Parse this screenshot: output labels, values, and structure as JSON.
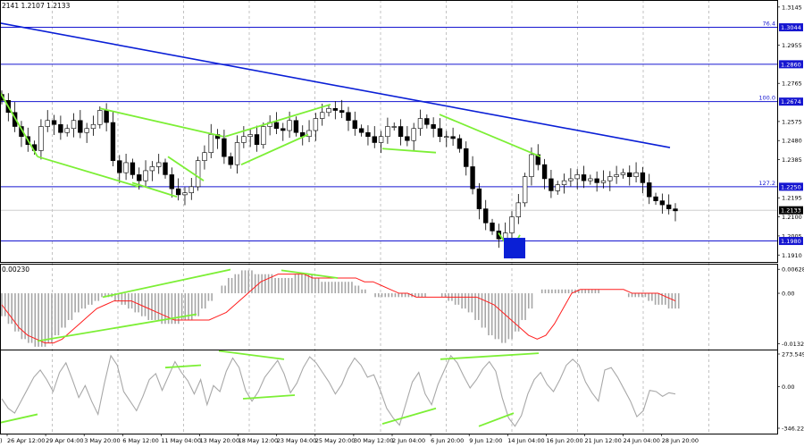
{
  "chart_data": [
    {
      "panel": "price",
      "type": "candlestick",
      "header": "2141 1.2107 1.2133",
      "yticks": [
        1.3145,
        1.2955,
        1.2765,
        1.2575,
        1.248,
        1.2385,
        1.2195,
        1.21,
        1.2005,
        1.191
      ],
      "ylim": [
        1.188,
        1.318
      ],
      "levels": [
        {
          "value": 1.3044,
          "label": "1.3044",
          "fib": "76.4"
        },
        {
          "value": 1.286,
          "label": "1.2860",
          "fib": ""
        },
        {
          "value": 1.2674,
          "label": "1.2674",
          "fib": "100.0"
        },
        {
          "value": 1.225,
          "label": "1.2250",
          "fib": "127.2"
        },
        {
          "value": 1.198,
          "label": "1.1980",
          "fib": ""
        }
      ],
      "current_price": {
        "value": 1.2133,
        "label": "1.2133"
      },
      "trendline": {
        "from": [
          0,
          1.3065
        ],
        "to": [
          750,
          1.2445
        ]
      },
      "close_series": [
        1.268,
        1.262,
        1.255,
        1.25,
        1.246,
        1.243,
        1.255,
        1.258,
        1.256,
        1.252,
        1.254,
        1.258,
        1.252,
        1.254,
        1.256,
        1.263,
        1.257,
        1.238,
        1.232,
        1.237,
        1.231,
        1.228,
        1.233,
        1.235,
        1.237,
        1.231,
        1.224,
        1.221,
        1.222,
        1.225,
        1.238,
        1.242,
        1.251,
        1.249,
        1.24,
        1.236,
        1.247,
        1.25,
        1.251,
        1.246,
        1.255,
        1.257,
        1.254,
        1.253,
        1.258,
        1.252,
        1.25,
        1.253,
        1.259,
        1.262,
        1.264,
        1.263,
        1.262,
        1.258,
        1.254,
        1.252,
        1.25,
        1.247,
        1.25,
        1.255,
        1.255,
        1.25,
        1.248,
        1.254,
        1.259,
        1.256,
        1.254,
        1.25,
        1.25,
        1.249,
        1.244,
        1.235,
        1.224,
        1.214,
        1.207,
        1.203,
        1.199,
        1.202,
        1.21,
        1.217,
        1.23,
        1.241,
        1.236,
        1.229,
        1.223,
        1.226,
        1.228,
        1.229,
        1.231,
        1.228,
        1.229,
        1.227,
        1.228,
        1.23,
        1.231,
        1.232,
        1.23,
        1.232,
        1.227,
        1.22,
        1.218,
        1.216,
        1.214,
        1.213
      ],
      "wedges": [
        {
          "from": [
            0,
            1.272
          ],
          "to": [
            42,
            1.24
          ]
        },
        {
          "from": [
            42,
            1.24
          ],
          "to": [
            155,
            1.225
          ]
        },
        {
          "from": [
            112,
            1.264
          ],
          "to": [
            250,
            1.25
          ]
        },
        {
          "from": [
            188,
            1.24
          ],
          "to": [
            228,
            1.228
          ]
        },
        {
          "from": [
            148,
            1.227
          ],
          "to": [
            198,
            1.22
          ]
        },
        {
          "from": [
            252,
            1.25
          ],
          "to": [
            370,
            1.266
          ]
        },
        {
          "from": [
            270,
            1.236
          ],
          "to": [
            345,
            1.251
          ]
        },
        {
          "from": [
            428,
            1.244
          ],
          "to": [
            488,
            1.242
          ]
        },
        {
          "from": [
            492,
            1.261
          ],
          "to": [
            605,
            1.24
          ]
        },
        {
          "from": [
            558,
            1.202
          ],
          "to": [
            572,
            1.193
          ]
        },
        {
          "from": [
            572,
            1.193
          ],
          "to": [
            582,
            1.201
          ]
        }
      ],
      "marker": {
        "x": 576,
        "price": 1.196
      }
    },
    {
      "panel": "macd",
      "type": "histogram",
      "header": "0.00230",
      "yticks": [
        "0.00628",
        "0.00",
        "-0.01323"
      ],
      "ylim": [
        -0.0145,
        0.0075
      ],
      "histogram": [
        -0.006,
        -0.008,
        -0.01,
        -0.012,
        -0.013,
        -0.014,
        -0.014,
        -0.013,
        -0.011,
        -0.009,
        -0.007,
        -0.005,
        -0.004,
        -0.003,
        -0.002,
        -0.001,
        -0.001,
        -0.002,
        -0.003,
        -0.004,
        -0.005,
        -0.006,
        -0.007,
        -0.007,
        -0.008,
        -0.008,
        -0.008,
        -0.007,
        -0.007,
        -0.006,
        -0.004,
        -0.002,
        0.0,
        0.002,
        0.004,
        0.005,
        0.006,
        0.006,
        0.005,
        0.005,
        0.005,
        0.004,
        0.004,
        0.004,
        0.005,
        0.005,
        0.005,
        0.004,
        0.003,
        0.003,
        0.003,
        0.003,
        0.003,
        0.002,
        0.001,
        0.0,
        -0.001,
        -0.001,
        -0.001,
        -0.001,
        -0.001,
        -0.001,
        -0.001,
        -0.001,
        0.0,
        0.0,
        -0.001,
        -0.002,
        -0.003,
        -0.004,
        -0.005,
        -0.007,
        -0.009,
        -0.011,
        -0.012,
        -0.013,
        -0.012,
        -0.01,
        -0.007,
        -0.004,
        0.0,
        0.001,
        0.001,
        0.001,
        0.001,
        0.001,
        0.001,
        0.001,
        0.001,
        0.001,
        0.0,
        0.0,
        0.0,
        0.0,
        -0.001,
        -0.001,
        -0.001,
        -0.002,
        -0.003,
        -0.003,
        -0.004,
        -0.004
      ],
      "signal": [
        -0.003,
        -0.006,
        -0.009,
        -0.011,
        -0.012,
        -0.013,
        -0.013,
        -0.012,
        -0.01,
        -0.008,
        -0.006,
        -0.004,
        -0.003,
        -0.002,
        -0.002,
        -0.002,
        -0.003,
        -0.004,
        -0.005,
        -0.006,
        -0.007,
        -0.007,
        -0.007,
        -0.007,
        -0.007,
        -0.006,
        -0.005,
        -0.003,
        -0.001,
        0.001,
        0.003,
        0.004,
        0.005,
        0.005,
        0.005,
        0.005,
        0.004,
        0.004,
        0.004,
        0.004,
        0.004,
        0.004,
        0.003,
        0.003,
        0.002,
        0.001,
        0.0,
        0.0,
        -0.001,
        -0.001,
        -0.001,
        -0.001,
        -0.001,
        -0.001,
        -0.001,
        -0.001,
        -0.002,
        -0.003,
        -0.005,
        -0.007,
        -0.009,
        -0.011,
        -0.012,
        -0.011,
        -0.008,
        -0.004,
        0.0,
        0.001,
        0.001,
        0.001,
        0.001,
        0.001,
        0.001,
        0.0,
        0.0,
        0.0,
        0.0,
        -0.001,
        -0.002
      ],
      "wedges": [
        {
          "from": [
            42,
            -0.0125
          ],
          "to": [
            220,
            -0.0055
          ]
        },
        {
          "from": [
            115,
            -0.001
          ],
          "to": [
            258,
            0.0062
          ]
        },
        {
          "from": [
            315,
            0.006
          ],
          "to": [
            378,
            0.004
          ]
        }
      ]
    },
    {
      "panel": "cci",
      "type": "line",
      "yticks": [
        "273.549",
        "0.00",
        "-346.223"
      ],
      "ylim": [
        -346.223,
        273.549
      ],
      "values": [
        -100,
        -180,
        -220,
        -120,
        -20,
        80,
        140,
        60,
        -40,
        120,
        200,
        60,
        -90,
        10,
        -120,
        -230,
        30,
        260,
        180,
        -40,
        -120,
        -200,
        -80,
        60,
        110,
        -30,
        90,
        210,
        120,
        50,
        -60,
        60,
        -150,
        10,
        -40,
        130,
        240,
        160,
        -30,
        -120,
        -40,
        80,
        150,
        220,
        110,
        -50,
        30,
        160,
        250,
        200,
        120,
        40,
        -60,
        20,
        150,
        240,
        180,
        80,
        100,
        -30,
        -180,
        -260,
        -320,
        -140,
        40,
        120,
        -60,
        -150,
        20,
        140,
        260,
        200,
        90,
        -10,
        60,
        150,
        210,
        130,
        -90,
        -260,
        -330,
        -240,
        -60,
        60,
        120,
        20,
        -40,
        60,
        180,
        230,
        180,
        40,
        -50,
        -120,
        140,
        160,
        80,
        -20,
        -120,
        -250,
        -200,
        -30,
        -40,
        -80,
        -50,
        -60
      ],
      "wedges": [
        {
          "from": [
            0,
            -300
          ],
          "to": [
            42,
            -230
          ]
        },
        {
          "from": [
            185,
            160
          ],
          "to": [
            225,
            180
          ]
        },
        {
          "from": [
            245,
            300
          ],
          "to": [
            318,
            230
          ]
        },
        {
          "from": [
            272,
            -100
          ],
          "to": [
            330,
            -70
          ]
        },
        {
          "from": [
            428,
            -310
          ],
          "to": [
            488,
            -180
          ]
        },
        {
          "from": [
            493,
            230
          ],
          "to": [
            603,
            280
          ]
        },
        {
          "from": [
            536,
            -330
          ],
          "to": [
            575,
            -220
          ]
        }
      ]
    }
  ],
  "x_axis_labels": [
    "26 Apr 12:00",
    "29 Apr 04:00",
    "3 May 20:00",
    "6 May 12:00",
    "11 May 04:00",
    "13 May 20:00",
    "18 May 12:00",
    "23 May 04:00",
    "25 May 20:00",
    "30 May 12:00",
    "2 Jun 04:00",
    "6 Jun 20:00",
    "9 Jun 12:00",
    "14 Jun 04:00",
    "16 Jun 20:00",
    "21 Jun 12:00",
    "24 Jun 04:00",
    "28 Jun 20:00"
  ],
  "x_axis_first_fragment": ")",
  "colors": {
    "background": "#ffffff",
    "candle": "#000000",
    "trendline": "#0a1fd6",
    "levels": "#1616d0",
    "wedges": "#7cef35",
    "signal": "#ff1e1e",
    "histogram": "#a6a6a6",
    "cci_line": "#a8a8a8",
    "grid": "#b5b5b5",
    "current_price_box": "#000000",
    "level_box": "#1616d0"
  }
}
